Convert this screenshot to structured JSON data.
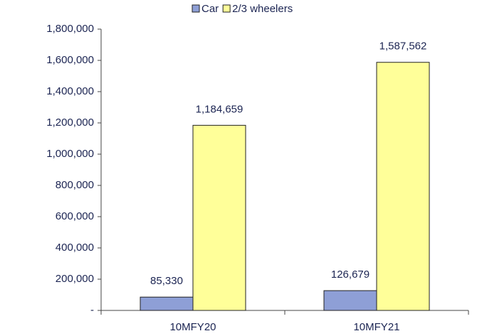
{
  "chart_data": {
    "type": "bar",
    "categories": [
      "10MFY20",
      "10MFY21"
    ],
    "series": [
      {
        "name": "Car",
        "color": "#8e9fd6",
        "values": [
          85330,
          126679
        ],
        "value_labels": [
          "85,330",
          "126,679"
        ]
      },
      {
        "name": "2/3 wheelers",
        "color": "#ffff99",
        "values": [
          1184659,
          1587562
        ],
        "value_labels": [
          "1,184,659",
          "1,587,562"
        ]
      }
    ],
    "ylim": [
      0,
      1800000
    ],
    "yticks": [
      {
        "value": 0,
        "label": "-"
      },
      {
        "value": 200000,
        "label": "200,000"
      },
      {
        "value": 400000,
        "label": "400,000"
      },
      {
        "value": 600000,
        "label": "600,000"
      },
      {
        "value": 800000,
        "label": "800,000"
      },
      {
        "value": 1000000,
        "label": "1,000,000"
      },
      {
        "value": 1200000,
        "label": "1,200,000"
      },
      {
        "value": 1400000,
        "label": "1,400,000"
      },
      {
        "value": 1600000,
        "label": "1,600,000"
      },
      {
        "value": 1800000,
        "label": "1,800,000"
      }
    ],
    "grid": false,
    "legend": "top"
  }
}
